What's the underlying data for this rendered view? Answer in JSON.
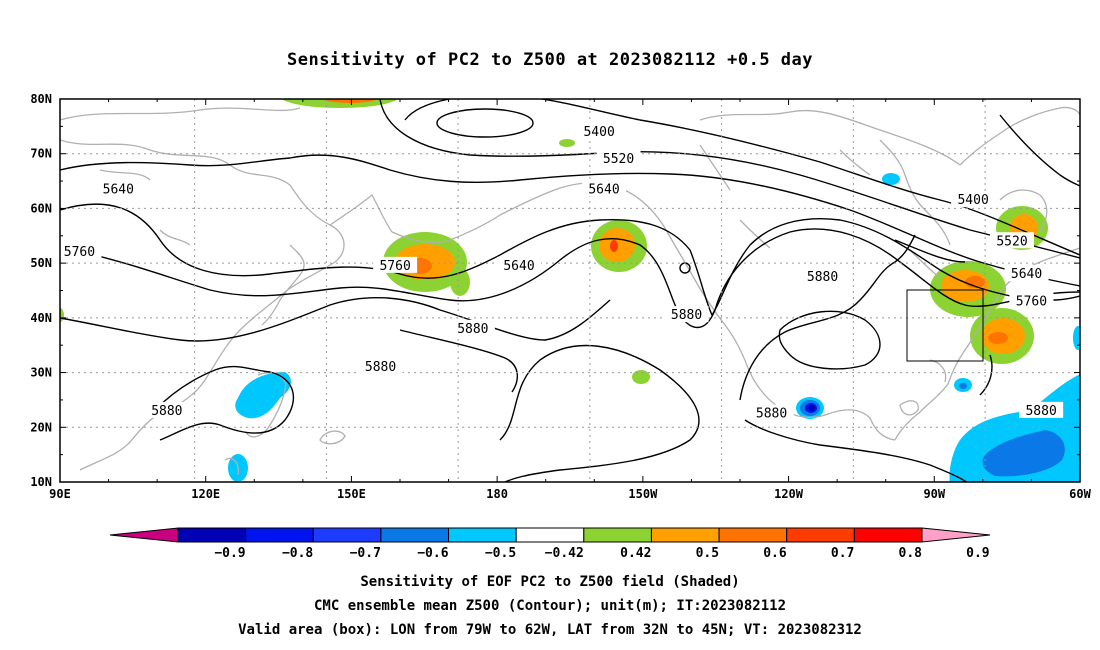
{
  "title": "Sensitivity of PC2 to Z500 at 2023082112 +0.5 day",
  "axes": {
    "x_ticks": [
      "90E",
      "120E",
      "150E",
      "180",
      "150W",
      "120W",
      "90W",
      "60W"
    ],
    "y_ticks": [
      "10N",
      "20N",
      "30N",
      "40N",
      "50N",
      "60N",
      "70N",
      "80N"
    ],
    "lon_range": [
      90,
      300
    ],
    "lat_range": [
      10,
      80
    ],
    "grid": "dotted"
  },
  "contour_labels": [
    {
      "text": "5400",
      "lon": 201,
      "lat": 74
    },
    {
      "text": "5520",
      "lon": 205,
      "lat": 69
    },
    {
      "text": "5640",
      "lon": 202,
      "lat": 63.5
    },
    {
      "text": "5400",
      "lon": 278,
      "lat": 61.5
    },
    {
      "text": "5520",
      "lon": 286,
      "lat": 54
    },
    {
      "text": "5640",
      "lon": 289,
      "lat": 48
    },
    {
      "text": "5760",
      "lon": 290,
      "lat": 43
    },
    {
      "text": "5880",
      "lon": 292,
      "lat": 23
    },
    {
      "text": "5640",
      "lon": 102,
      "lat": 63.5
    },
    {
      "text": "5760",
      "lon": 94,
      "lat": 52
    },
    {
      "text": "5760",
      "lon": 159,
      "lat": 49.5
    },
    {
      "text": "5640",
      "lon": 184.5,
      "lat": 49.5
    },
    {
      "text": "5880",
      "lon": 156,
      "lat": 31
    },
    {
      "text": "5880",
      "lon": 175,
      "lat": 38
    },
    {
      "text": "5880",
      "lon": 112,
      "lat": 23
    },
    {
      "text": "5880",
      "lon": 219,
      "lat": 40.5
    },
    {
      "text": "5880",
      "lon": 247,
      "lat": 47.5
    },
    {
      "text": "5880",
      "lon": 236.5,
      "lat": 22.5
    }
  ],
  "contour_levels_m": [
    5400,
    5520,
    5640,
    5760,
    5880
  ],
  "valid_box": {
    "lon_west": -79,
    "lon_east": -62,
    "lat_south": 32,
    "lat_north": 45
  },
  "shaded_regions": [
    {
      "lon": 172.5,
      "lat": 50,
      "max": 0.7
    },
    {
      "lon": 219,
      "lat": 52.5,
      "max": 0.8
    },
    {
      "lon": 284,
      "lat": 43.5,
      "max": 0.7
    },
    {
      "lon": 293,
      "lat": 34.5,
      "max": 0.7
    },
    {
      "lon": 297.5,
      "lat": 55,
      "max": 0.6
    },
    {
      "lon": 137,
      "lat": 23,
      "min": -0.5
    },
    {
      "lon": 260,
      "lat": 22,
      "min": -0.9
    },
    {
      "lon": 298,
      "lat": 17.5,
      "min": -0.6
    }
  ],
  "colorbar": {
    "labels": [
      "-0.9",
      "-0.8",
      "-0.7",
      "-0.6",
      "-0.5",
      "-0.42",
      "0.42",
      "0.5",
      "0.6",
      "0.7",
      "0.8",
      "0.9"
    ],
    "colors": [
      "#c8007f",
      "#0000b4",
      "#0014f0",
      "#1e3cff",
      "#0a78e6",
      "#00c8ff",
      "#ffffff",
      "#8cd232",
      "#ffa000",
      "#ff7300",
      "#ff3c00",
      "#ff0000",
      "#ffa0c8"
    ]
  },
  "captions": [
    "Sensitivity of EOF PC2 to Z500 field (Shaded)",
    "CMC ensemble mean Z500 (Contour); unit(m); IT:2023082112",
    "Valid area (box): LON from 79W to 62W, LAT from 32N to 45N; VT: 2023082312"
  ]
}
